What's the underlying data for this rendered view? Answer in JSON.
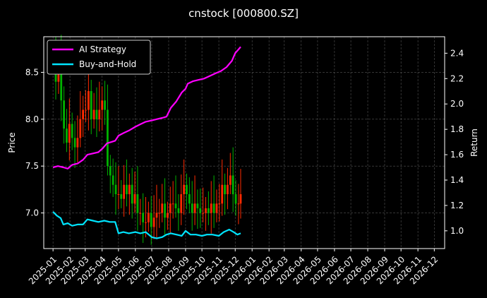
{
  "chart_data": {
    "type": "line",
    "title": "cnstock [000800.SZ]",
    "xlabel": "",
    "ylabel_left": "Price",
    "ylabel_right": "Return",
    "grid": true,
    "legend_position": "top-left",
    "colors": {
      "background": "#000000",
      "ai_strategy": "#ff00ff",
      "buy_and_hold": "#00e5ff",
      "candle_up": "#ff2a00",
      "candle_down": "#00b300",
      "grid": "#555555",
      "axes": "#ffffff"
    },
    "x_range": [
      "2024-12-15",
      "2026-12-20"
    ],
    "x_ticks": [
      "2025-01",
      "2025-02",
      "2025-03",
      "2025-04",
      "2025-05",
      "2025-06",
      "2025-07",
      "2025-08",
      "2025-09",
      "2025-10",
      "2025-11",
      "2025-12",
      "2026-01",
      "2026-02",
      "2026-03",
      "2026-04",
      "2026-05",
      "2026-06",
      "2026-07",
      "2026-08",
      "2026-09",
      "2026-10",
      "2026-11",
      "2026-12"
    ],
    "y_left": {
      "label": "Price",
      "range": [
        6.62,
        8.88
      ],
      "ticks": [
        7.0,
        7.5,
        8.0,
        8.5
      ]
    },
    "y_right": {
      "label": "Return",
      "range": [
        0.86,
        2.53
      ],
      "ticks": [
        1.0,
        1.2,
        1.4,
        1.6,
        1.8,
        2.0,
        2.2,
        2.4
      ]
    },
    "series": [
      {
        "name": "AI Strategy",
        "axis": "right",
        "points": [
          [
            "2025-01-01",
            1.5
          ],
          [
            "2025-01-10",
            1.51
          ],
          [
            "2025-01-20",
            1.5
          ],
          [
            "2025-01-28",
            1.49
          ],
          [
            "2025-02-05",
            1.52
          ],
          [
            "2025-02-15",
            1.53
          ],
          [
            "2025-02-25",
            1.56
          ],
          [
            "2025-03-05",
            1.6
          ],
          [
            "2025-03-15",
            1.61
          ],
          [
            "2025-03-25",
            1.62
          ],
          [
            "2025-04-02",
            1.65
          ],
          [
            "2025-04-10",
            1.69
          ],
          [
            "2025-04-18",
            1.7
          ],
          [
            "2025-04-25",
            1.71
          ],
          [
            "2025-05-01",
            1.75
          ],
          [
            "2025-05-10",
            1.77
          ],
          [
            "2025-05-20",
            1.79
          ],
          [
            "2025-06-01",
            1.82
          ],
          [
            "2025-06-10",
            1.84
          ],
          [
            "2025-06-20",
            1.86
          ],
          [
            "2025-07-01",
            1.87
          ],
          [
            "2025-07-10",
            1.88
          ],
          [
            "2025-07-20",
            1.89
          ],
          [
            "2025-07-28",
            1.9
          ],
          [
            "2025-08-05",
            1.97
          ],
          [
            "2025-08-15",
            2.02
          ],
          [
            "2025-08-25",
            2.09
          ],
          [
            "2025-09-01",
            2.12
          ],
          [
            "2025-09-05",
            2.16
          ],
          [
            "2025-09-15",
            2.18
          ],
          [
            "2025-09-25",
            2.19
          ],
          [
            "2025-10-05",
            2.2
          ],
          [
            "2025-10-15",
            2.22
          ],
          [
            "2025-10-25",
            2.24
          ],
          [
            "2025-11-05",
            2.26
          ],
          [
            "2025-11-15",
            2.29
          ],
          [
            "2025-11-25",
            2.34
          ],
          [
            "2025-12-01",
            2.4
          ],
          [
            "2025-12-07",
            2.43
          ],
          [
            "2025-12-11",
            2.45
          ]
        ]
      },
      {
        "name": "Buy-and-Hold",
        "axis": "right",
        "points": [
          [
            "2025-01-01",
            1.15
          ],
          [
            "2025-01-08",
            1.12
          ],
          [
            "2025-01-15",
            1.1
          ],
          [
            "2025-01-20",
            1.05
          ],
          [
            "2025-01-28",
            1.06
          ],
          [
            "2025-02-05",
            1.04
          ],
          [
            "2025-02-15",
            1.05
          ],
          [
            "2025-02-25",
            1.05
          ],
          [
            "2025-03-05",
            1.09
          ],
          [
            "2025-03-15",
            1.08
          ],
          [
            "2025-03-25",
            1.07
          ],
          [
            "2025-04-05",
            1.08
          ],
          [
            "2025-04-15",
            1.07
          ],
          [
            "2025-04-25",
            1.07
          ],
          [
            "2025-05-01",
            0.98
          ],
          [
            "2025-05-10",
            0.99
          ],
          [
            "2025-05-20",
            0.98
          ],
          [
            "2025-06-01",
            0.99
          ],
          [
            "2025-06-10",
            0.98
          ],
          [
            "2025-06-20",
            0.99
          ],
          [
            "2025-07-01",
            0.95
          ],
          [
            "2025-07-10",
            0.94
          ],
          [
            "2025-07-20",
            0.95
          ],
          [
            "2025-07-28",
            0.97
          ],
          [
            "2025-08-05",
            0.98
          ],
          [
            "2025-08-15",
            0.97
          ],
          [
            "2025-08-25",
            0.96
          ],
          [
            "2025-09-01",
            1.0
          ],
          [
            "2025-09-10",
            0.97
          ],
          [
            "2025-09-20",
            0.97
          ],
          [
            "2025-10-01",
            0.96
          ],
          [
            "2025-10-10",
            0.97
          ],
          [
            "2025-10-20",
            0.97
          ],
          [
            "2025-11-01",
            0.96
          ],
          [
            "2025-11-10",
            0.99
          ],
          [
            "2025-11-20",
            1.01
          ],
          [
            "2025-11-28",
            0.99
          ],
          [
            "2025-12-05",
            0.97
          ],
          [
            "2025-12-11",
            0.98
          ]
        ]
      }
    ],
    "candles": {
      "axis": "left",
      "close": [
        [
          "2025-01-01",
          8.7
        ],
        [
          "2025-01-06",
          8.4
        ],
        [
          "2025-01-11",
          8.6
        ],
        [
          "2025-01-16",
          8.2
        ],
        [
          "2025-01-21",
          7.9
        ],
        [
          "2025-01-26",
          7.75
        ],
        [
          "2025-01-31",
          7.95
        ],
        [
          "2025-02-05",
          7.8
        ],
        [
          "2025-02-10",
          7.7
        ],
        [
          "2025-02-15",
          7.8
        ],
        [
          "2025-02-20",
          8.0
        ],
        [
          "2025-02-25",
          8.1
        ],
        [
          "2025-03-02",
          8.1
        ],
        [
          "2025-03-07",
          8.3
        ],
        [
          "2025-03-12",
          8.0
        ],
        [
          "2025-03-17",
          8.1
        ],
        [
          "2025-03-22",
          8.0
        ],
        [
          "2025-03-27",
          8.1
        ],
        [
          "2025-04-01",
          8.2
        ],
        [
          "2025-04-06",
          8.1
        ],
        [
          "2025-04-11",
          7.5
        ],
        [
          "2025-04-16",
          7.4
        ],
        [
          "2025-04-21",
          7.3
        ],
        [
          "2025-04-26",
          7.2
        ],
        [
          "2025-05-01",
          7.2
        ],
        [
          "2025-05-06",
          7.15
        ],
        [
          "2025-05-11",
          7.3
        ],
        [
          "2025-05-16",
          7.2
        ],
        [
          "2025-05-21",
          7.3
        ],
        [
          "2025-05-26",
          7.1
        ],
        [
          "2025-05-31",
          7.2
        ],
        [
          "2025-06-05",
          7.0
        ],
        [
          "2025-06-10",
          7.0
        ],
        [
          "2025-06-15",
          6.9
        ],
        [
          "2025-06-20",
          6.9
        ],
        [
          "2025-06-25",
          7.0
        ],
        [
          "2025-06-30",
          6.85
        ],
        [
          "2025-07-05",
          6.95
        ],
        [
          "2025-07-10",
          7.0
        ],
        [
          "2025-07-15",
          7.0
        ],
        [
          "2025-07-20",
          7.1
        ],
        [
          "2025-07-25",
          6.95
        ],
        [
          "2025-07-30",
          7.0
        ],
        [
          "2025-08-04",
          7.1
        ],
        [
          "2025-08-09",
          7.1
        ],
        [
          "2025-08-14",
          7.05
        ],
        [
          "2025-08-19",
          7.0
        ],
        [
          "2025-08-24",
          7.2
        ],
        [
          "2025-08-29",
          7.3
        ],
        [
          "2025-09-03",
          7.2
        ],
        [
          "2025-09-08",
          7.1
        ],
        [
          "2025-09-13",
          7.0
        ],
        [
          "2025-09-18",
          7.1
        ],
        [
          "2025-09-23",
          7.05
        ],
        [
          "2025-09-28",
          7.0
        ],
        [
          "2025-10-03",
          7.0
        ],
        [
          "2025-10-08",
          7.05
        ],
        [
          "2025-10-13",
          7.0
        ],
        [
          "2025-10-18",
          7.1
        ],
        [
          "2025-10-23",
          7.0
        ],
        [
          "2025-10-28",
          7.1
        ],
        [
          "2025-11-02",
          7.1
        ],
        [
          "2025-11-07",
          7.3
        ],
        [
          "2025-11-12",
          7.2
        ],
        [
          "2025-11-17",
          7.3
        ],
        [
          "2025-11-22",
          7.4
        ],
        [
          "2025-11-27",
          7.2
        ],
        [
          "2025-12-02",
          7.1
        ],
        [
          "2025-12-07",
          7.1
        ],
        [
          "2025-12-11",
          7.2
        ]
      ]
    }
  }
}
